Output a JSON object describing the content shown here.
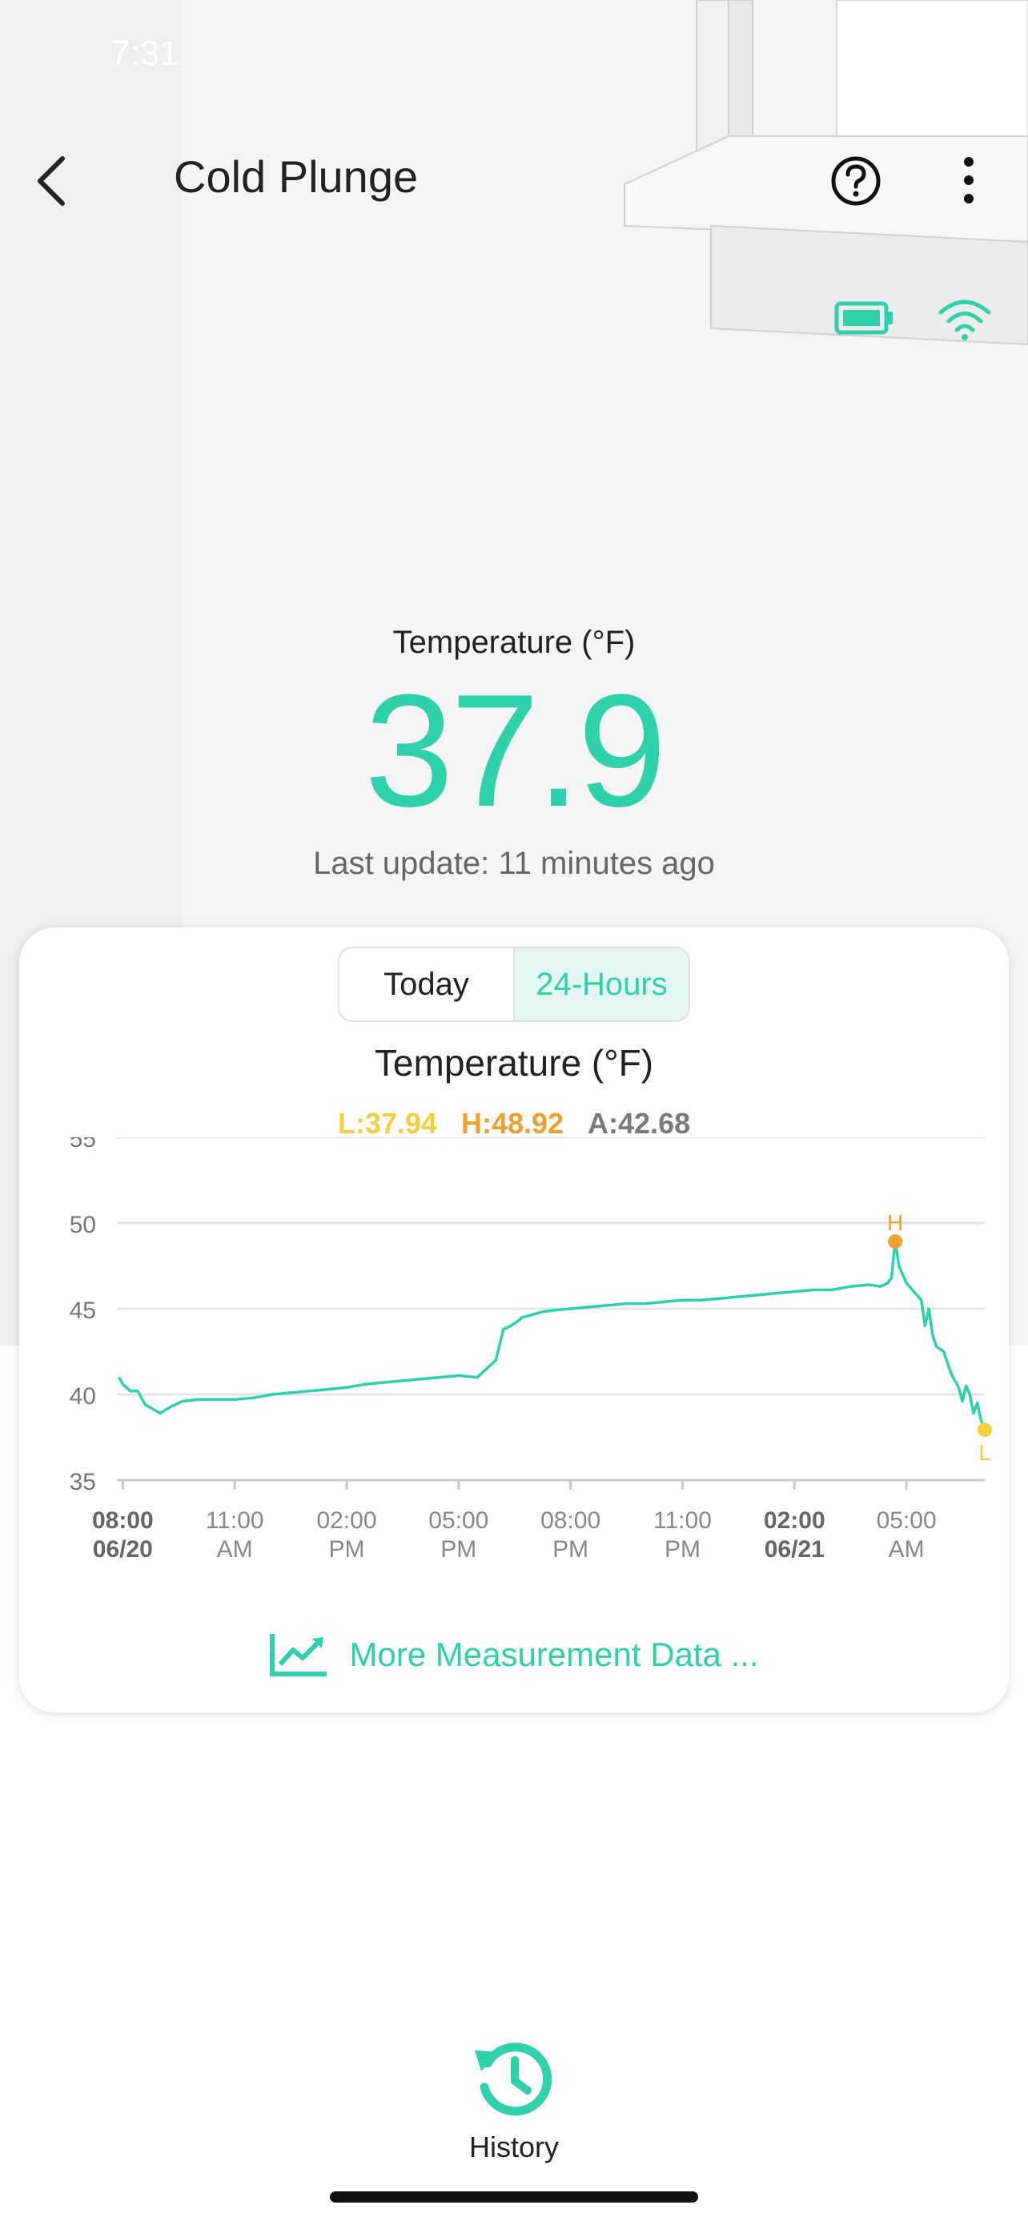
{
  "status_bar": {
    "time": "7:31"
  },
  "header": {
    "title": "Cold Plunge",
    "back_icon": "chevron-left-icon",
    "help_icon": "help-circle-icon",
    "more_icon": "more-vertical-icon"
  },
  "device": {
    "battery_icon": "battery-icon",
    "wifi_icon": "wifi-icon"
  },
  "reading": {
    "label": "Temperature (°F)",
    "value": "37.9",
    "last_update": "Last update: 11 minutes ago"
  },
  "range_tabs": [
    {
      "label": "Today",
      "active": false
    },
    {
      "label": "24-Hours",
      "active": true
    }
  ],
  "chart_data": {
    "type": "line",
    "title": "Temperature (°F)",
    "stats": {
      "low": "L:37.94",
      "high": "H:48.92",
      "avg": "A:42.68"
    },
    "ylim": [
      35,
      55
    ],
    "yticks": [
      "55",
      "50",
      "45",
      "40",
      "35"
    ],
    "xticks": [
      {
        "top": "08:00",
        "bottom": "06/20",
        "bold": true
      },
      {
        "top": "11:00",
        "bottom": "AM",
        "bold": false
      },
      {
        "top": "02:00",
        "bottom": "PM",
        "bold": false
      },
      {
        "top": "05:00",
        "bottom": "PM",
        "bold": false
      },
      {
        "top": "08:00",
        "bottom": "PM",
        "bold": false
      },
      {
        "top": "11:00",
        "bottom": "PM",
        "bold": false
      },
      {
        "top": "02:00",
        "bottom": "06/21",
        "bold": true
      },
      {
        "top": "05:00",
        "bottom": "AM",
        "bold": false
      }
    ],
    "grid": true,
    "series": [
      {
        "color": "#2fd1ab",
        "x": [
          7.9,
          8.0,
          8.2,
          8.4,
          8.6,
          9.0,
          9.3,
          9.6,
          10.0,
          10.5,
          11.0,
          11.5,
          12.0,
          12.5,
          13.0,
          13.5,
          14.0,
          14.5,
          15.0,
          15.5,
          16.0,
          16.5,
          17.0,
          17.5,
          18.0,
          18.2,
          18.4,
          18.6,
          18.7,
          18.9,
          19.2,
          19.5,
          20.0,
          20.5,
          21.0,
          21.5,
          22.0,
          22.5,
          23.0,
          23.5,
          24.0,
          24.5,
          25.0,
          25.5,
          26.0,
          26.5,
          27.0,
          27.5,
          28.0,
          28.3,
          28.5,
          28.6,
          28.7,
          28.8,
          29.0,
          29.2,
          29.4,
          29.5,
          29.6,
          29.7,
          29.8,
          30.0,
          30.2,
          30.4,
          30.5,
          30.6,
          30.7,
          30.8,
          30.9,
          31.0,
          31.1
        ],
        "y": [
          41.0,
          40.6,
          40.2,
          40.2,
          39.4,
          38.9,
          39.3,
          39.6,
          39.7,
          39.7,
          39.7,
          39.8,
          40.0,
          40.1,
          40.2,
          40.3,
          40.4,
          40.6,
          40.7,
          40.8,
          40.9,
          41.0,
          41.1,
          41.0,
          42.0,
          43.8,
          44.0,
          44.3,
          44.5,
          44.6,
          44.8,
          44.9,
          45.0,
          45.1,
          45.2,
          45.3,
          45.3,
          45.4,
          45.5,
          45.5,
          45.6,
          45.7,
          45.8,
          45.9,
          46.0,
          46.1,
          46.1,
          46.3,
          46.4,
          46.3,
          46.5,
          46.8,
          48.92,
          47.5,
          46.5,
          46.0,
          45.5,
          44.0,
          45.0,
          43.5,
          42.8,
          42.5,
          41.2,
          40.4,
          39.6,
          40.5,
          40.0,
          38.9,
          39.5,
          38.5,
          37.94
        ]
      }
    ],
    "high_marker": {
      "label": "H",
      "x": 28.7,
      "y": 48.92,
      "color": "#f0a030"
    },
    "low_marker": {
      "label": "L",
      "x": 31.1,
      "y": 37.94,
      "color": "#f4d03f"
    }
  },
  "more_data": {
    "label": "More Measurement Data ...",
    "icon": "trend-chart-icon"
  },
  "bottom_nav": {
    "history_label": "History",
    "history_icon": "history-icon"
  }
}
